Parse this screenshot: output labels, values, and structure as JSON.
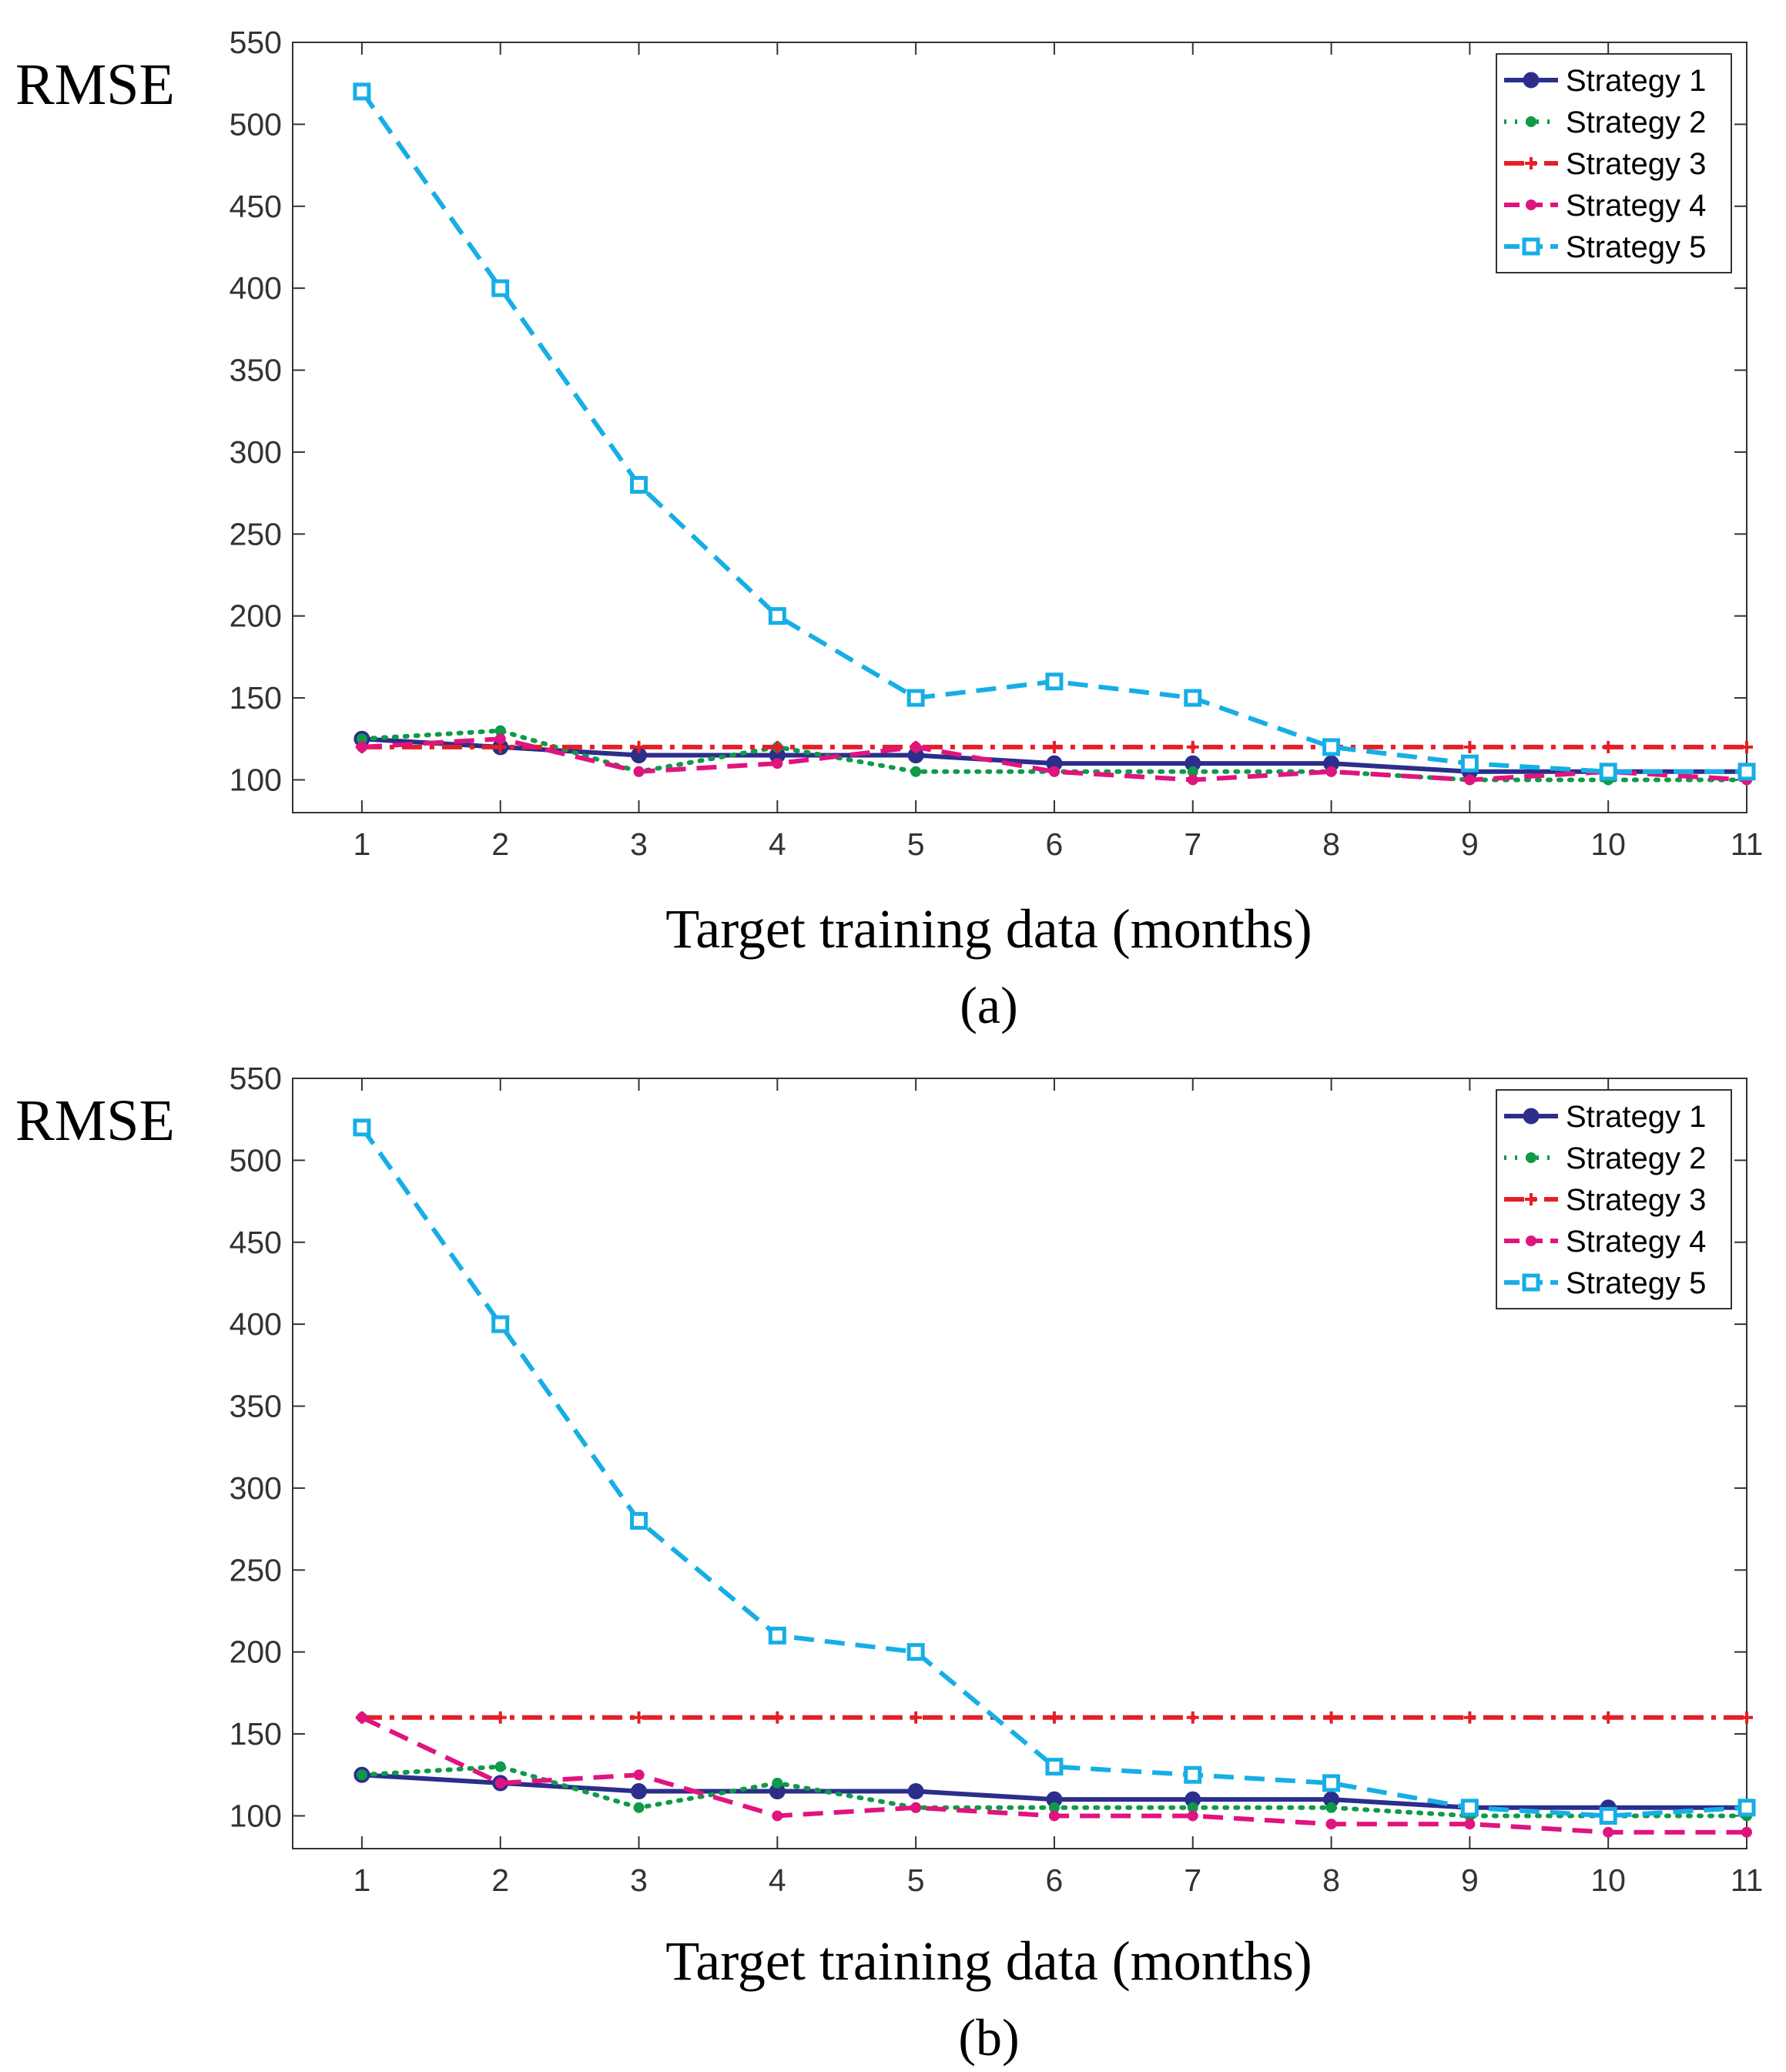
{
  "chart_data": [
    {
      "type": "line",
      "panel": "(a)",
      "title": "",
      "caption": "(a)",
      "xlabel": "Target training data (months)",
      "ylabel": "RMSE",
      "x": [
        1,
        2,
        3,
        4,
        5,
        6,
        7,
        8,
        9,
        10,
        11
      ],
      "xlim": [
        0.5,
        11
      ],
      "ylim": [
        80,
        550
      ],
      "yticks": [
        100,
        150,
        200,
        250,
        300,
        350,
        400,
        450,
        500,
        550
      ],
      "xticks": [
        1,
        2,
        3,
        4,
        5,
        6,
        7,
        8,
        9,
        10,
        11
      ],
      "grid": false,
      "legend_position": "top-right",
      "series": [
        {
          "name": "Strategy 1",
          "color": "#2b2e8a",
          "style": "solid",
          "marker": "circle",
          "values": [
            125,
            120,
            115,
            115,
            115,
            110,
            110,
            110,
            105,
            105,
            105
          ]
        },
        {
          "name": "Strategy 2",
          "color": "#0e9a48",
          "style": "dotted",
          "marker": "dot",
          "values": [
            125,
            130,
            105,
            120,
            105,
            105,
            105,
            105,
            100,
            100,
            100
          ]
        },
        {
          "name": "Strategy 3",
          "color": "#e41f26",
          "style": "dashdot",
          "marker": "plus",
          "values": [
            120,
            120,
            120,
            120,
            120,
            120,
            120,
            120,
            120,
            120,
            120
          ]
        },
        {
          "name": "Strategy 4",
          "color": "#e0147f",
          "style": "dashed",
          "marker": "dot",
          "values": [
            120,
            125,
            105,
            110,
            120,
            105,
            100,
            105,
            100,
            105,
            100
          ]
        },
        {
          "name": "Strategy 5",
          "color": "#16aee6",
          "style": "dashed",
          "marker": "square",
          "values": [
            520,
            400,
            280,
            200,
            150,
            160,
            150,
            120,
            110,
            105,
            105
          ]
        }
      ]
    },
    {
      "type": "line",
      "panel": "(b)",
      "title": "",
      "caption": "(b)",
      "xlabel": "Target training data (months)",
      "ylabel": "RMSE",
      "x": [
        1,
        2,
        3,
        4,
        5,
        6,
        7,
        8,
        9,
        10,
        11
      ],
      "xlim": [
        0.5,
        11
      ],
      "ylim": [
        80,
        550
      ],
      "yticks": [
        100,
        150,
        200,
        250,
        300,
        350,
        400,
        450,
        500,
        550
      ],
      "xticks": [
        1,
        2,
        3,
        4,
        5,
        6,
        7,
        8,
        9,
        10,
        11
      ],
      "grid": false,
      "legend_position": "top-right",
      "series": [
        {
          "name": "Strategy 1",
          "color": "#2b2e8a",
          "style": "solid",
          "marker": "circle",
          "values": [
            125,
            120,
            115,
            115,
            115,
            110,
            110,
            110,
            105,
            105,
            105
          ]
        },
        {
          "name": "Strategy 2",
          "color": "#0e9a48",
          "style": "dotted",
          "marker": "dot",
          "values": [
            125,
            130,
            105,
            120,
            105,
            105,
            105,
            105,
            100,
            100,
            100
          ]
        },
        {
          "name": "Strategy 3",
          "color": "#e41f26",
          "style": "dashdot",
          "marker": "plus",
          "values": [
            160,
            160,
            160,
            160,
            160,
            160,
            160,
            160,
            160,
            160,
            160
          ]
        },
        {
          "name": "Strategy 4",
          "color": "#e0147f",
          "style": "dashed",
          "marker": "dot",
          "values": [
            160,
            120,
            125,
            100,
            105,
            100,
            100,
            95,
            95,
            90,
            90
          ]
        },
        {
          "name": "Strategy 5",
          "color": "#16aee6",
          "style": "dashed",
          "marker": "square",
          "values": [
            520,
            400,
            280,
            210,
            200,
            130,
            125,
            120,
            105,
            100,
            105
          ]
        }
      ]
    }
  ]
}
